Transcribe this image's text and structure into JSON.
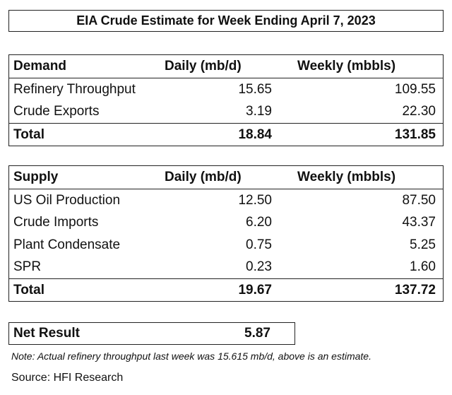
{
  "title": "EIA Crude Estimate for Week Ending April 7, 2023",
  "tables": [
    {
      "header": [
        "Demand",
        "Daily (mb/d)",
        "Weekly (mbbls)"
      ],
      "rows": [
        [
          "Refinery Throughput",
          "15.65",
          "109.55"
        ],
        [
          "Crude Exports",
          "3.19",
          "22.30"
        ]
      ],
      "total": [
        "Total",
        "18.84",
        "131.85"
      ]
    },
    {
      "header": [
        "Supply",
        "Daily (mb/d)",
        "Weekly (mbbls)"
      ],
      "rows": [
        [
          "US Oil Production",
          "12.50",
          "87.50"
        ],
        [
          "Crude Imports",
          "6.20",
          "43.37"
        ],
        [
          "Plant Condensate",
          "0.75",
          "5.25"
        ],
        [
          "SPR",
          "0.23",
          "1.60"
        ]
      ],
      "total": [
        "Total",
        "19.67",
        "137.72"
      ]
    }
  ],
  "net_result": {
    "label": "Net Result",
    "value": "5.87"
  },
  "note": "Note: Actual refinery throughput last week was 15.615 mb/d, above is an estimate.",
  "source": "Source: HFI Research"
}
